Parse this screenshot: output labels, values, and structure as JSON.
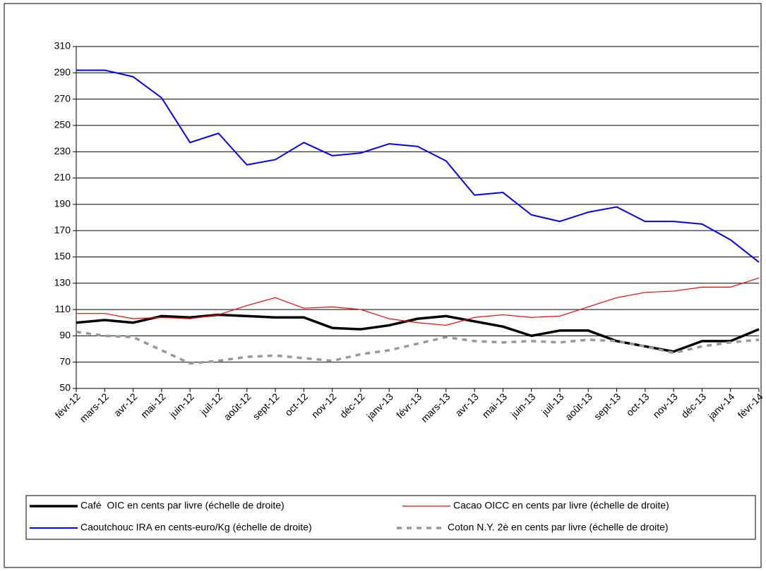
{
  "chart_data": {
    "type": "line",
    "categories": [
      "févr-12",
      "mars-12",
      "avr-12",
      "mai-12",
      "juin-12",
      "juil-12",
      "août-12",
      "sept-12",
      "oct-12",
      "nov-12",
      "déc-12",
      "janv-13",
      "févr-13",
      "mars-13",
      "avr-13",
      "mai-13",
      "juin-13",
      "juil-13",
      "août-13",
      "sept-13",
      "oct-13",
      "nov-13",
      "déc-13",
      "janv-14",
      "févr-14"
    ],
    "series": [
      {
        "name": "Café  OIC en cents par livre (échelle de droite)",
        "color": "#000000",
        "linewidth": 3.5,
        "linestyle": "solid",
        "values": [
          100,
          102,
          100,
          105,
          104,
          106,
          105,
          104,
          104,
          96,
          95,
          98,
          103,
          105,
          101,
          97,
          90,
          94,
          94,
          86,
          82,
          78,
          86,
          86,
          95
        ]
      },
      {
        "name": "Cacao OICC en cents par livre (échelle de droite)",
        "color": "#ff0000",
        "linewidth": 1.2,
        "linestyle": "solid",
        "values": [
          107,
          107,
          103,
          104,
          103,
          106,
          113,
          119,
          111,
          112,
          110,
          103,
          100,
          98,
          104,
          106,
          104,
          105,
          112,
          119,
          123,
          124,
          127,
          127,
          134
        ]
      },
      {
        "name": "Caoutchouc IRA en cents-euro/Kg (échelle de droite)",
        "color": "#0000ff",
        "linewidth": 2,
        "linestyle": "solid",
        "values": [
          292,
          292,
          287,
          271,
          237,
          244,
          220,
          224,
          237,
          227,
          229,
          236,
          234,
          223,
          197,
          199,
          182,
          177,
          184,
          188,
          177,
          177,
          175,
          163,
          146
        ]
      },
      {
        "name": "Coton N.Y. 2è en cents par livre (échelle de droite)",
        "color": "#999999",
        "linewidth": 3.5,
        "linestyle": "dashed",
        "values": [
          93,
          90,
          89,
          79,
          69,
          71,
          74,
          75,
          73,
          71,
          76,
          79,
          84,
          89,
          86,
          85,
          86,
          85,
          87,
          86,
          82,
          77,
          82,
          85,
          87
        ]
      }
    ],
    "ylim": [
      50,
      310
    ],
    "yticks": [
      50,
      70,
      90,
      110,
      130,
      150,
      170,
      190,
      210,
      230,
      250,
      270,
      290,
      310
    ],
    "grid": true,
    "legend": "bottom"
  }
}
